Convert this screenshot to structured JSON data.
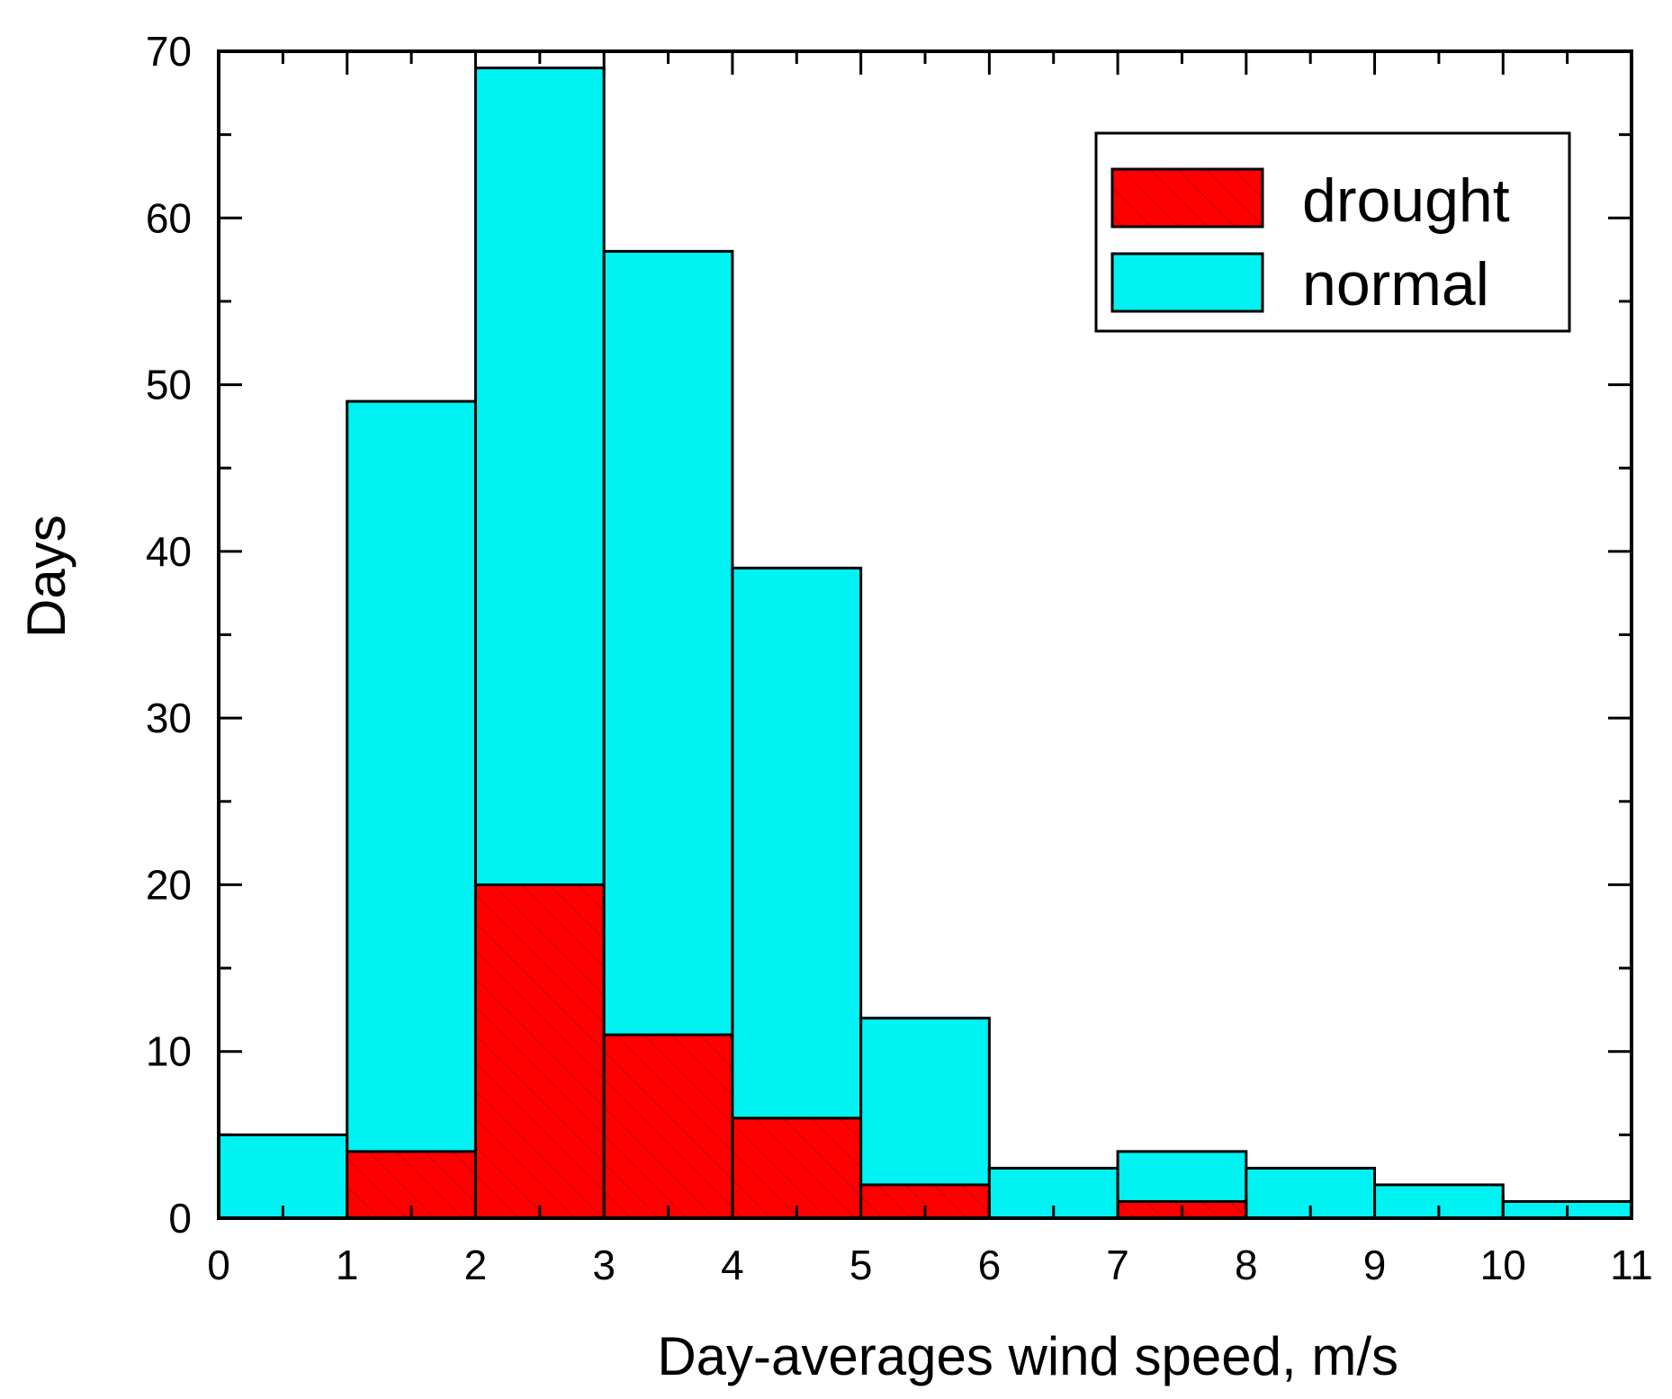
{
  "chart_data": {
    "type": "bar",
    "stacked": true,
    "bin_edges": [
      0,
      1,
      2,
      3,
      4,
      5,
      6,
      7,
      8,
      9,
      10,
      11
    ],
    "series": [
      {
        "name": "drought",
        "color": "#ff0000",
        "hatch": true,
        "values": [
          0,
          4,
          20,
          11,
          6,
          2,
          0,
          1,
          0,
          0,
          0
        ]
      },
      {
        "name": "normal",
        "color": "#00f2f2",
        "hatch": false,
        "values": [
          5,
          45,
          49,
          47,
          33,
          10,
          3,
          3,
          3,
          2,
          1
        ]
      }
    ],
    "totals": [
      5,
      49,
      69,
      58,
      39,
      12,
      3,
      4,
      3,
      2,
      1
    ],
    "xlabel": "Day-averages wind speed, m/s",
    "ylabel": "Days",
    "xlim": [
      0,
      11
    ],
    "ylim": [
      0,
      70
    ],
    "xticks": [
      "0",
      "1",
      "2",
      "3",
      "4",
      "5",
      "6",
      "7",
      "8",
      "9",
      "10",
      "11"
    ],
    "yticks": [
      "0",
      "10",
      "20",
      "30",
      "40",
      "50",
      "60",
      "70"
    ],
    "legend_position": "top-right",
    "grid": false
  }
}
